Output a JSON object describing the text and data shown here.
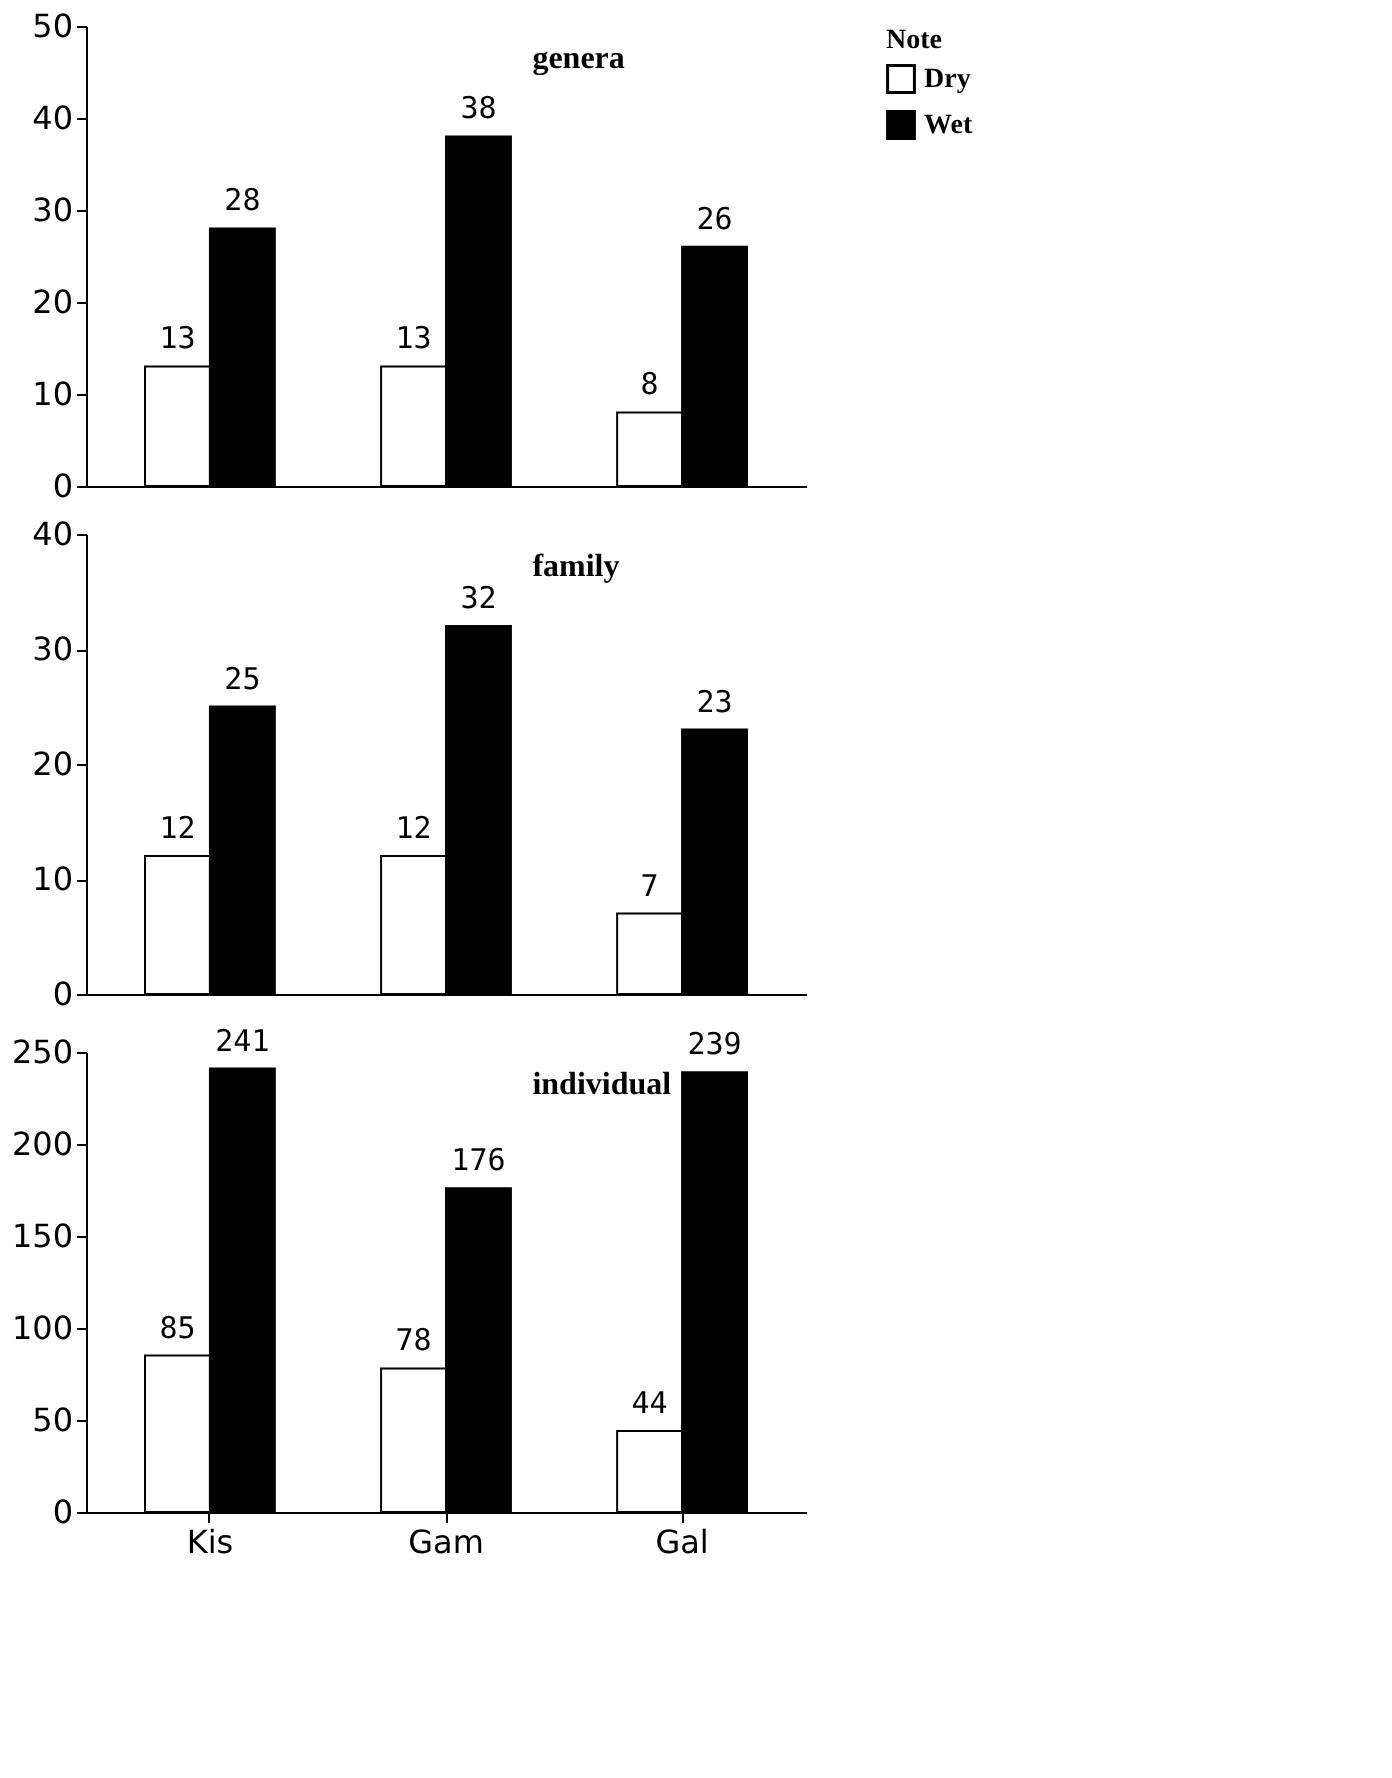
{
  "chart_data": [
    {
      "type": "bar",
      "title": "genera",
      "legend_title": "Note",
      "legend": "right",
      "data_labels": true,
      "grid": false,
      "tick_labels": "y",
      "ylim": [
        0,
        50
      ],
      "yticks": [
        0,
        10,
        20,
        30,
        40,
        50
      ],
      "series": [
        {
          "name": "Dry",
          "color": "#ffffff",
          "values": [
            13,
            13,
            8
          ]
        },
        {
          "name": "Wet",
          "color": "#000000",
          "values": [
            28,
            38,
            26
          ]
        }
      ]
    },
    {
      "type": "bar",
      "title": "family",
      "data_labels": true,
      "grid": false,
      "tick_labels": "y",
      "ylim": [
        0,
        40
      ],
      "yticks": [
        0,
        10,
        20,
        30,
        40
      ],
      "series": [
        {
          "color": "#ffffff",
          "values": [
            12,
            12,
            7
          ]
        },
        {
          "color": "#000000",
          "values": [
            25,
            32,
            23
          ]
        }
      ]
    },
    {
      "type": "bar",
      "title": "individual",
      "categories": [
        "Kis",
        "Gam",
        "Gal"
      ],
      "data_labels": true,
      "grid": false,
      "ylim": [
        0,
        250
      ],
      "yticks": [
        0,
        50,
        100,
        150,
        200,
        250
      ],
      "series": [
        {
          "color": "#ffffff",
          "values": [
            85,
            78,
            44
          ]
        },
        {
          "color": "#000000",
          "values": [
            241,
            176,
            239
          ]
        }
      ]
    }
  ]
}
